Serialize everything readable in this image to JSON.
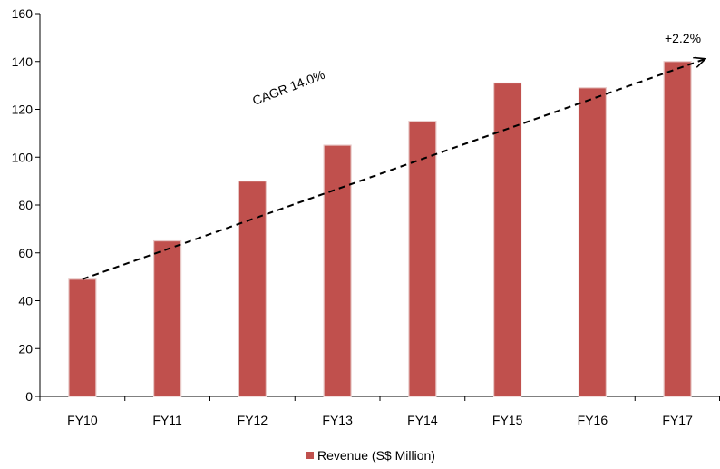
{
  "chart_data": {
    "type": "bar",
    "categories": [
      "FY10",
      "FY11",
      "FY12",
      "FY13",
      "FY14",
      "FY15",
      "FY16",
      "FY17"
    ],
    "series": [
      {
        "name": "Revenue (S$ Million)",
        "values": [
          49,
          65,
          90,
          105,
          115,
          131,
          129,
          140
        ],
        "color": "#C0504D"
      }
    ],
    "ylim": [
      0,
      160
    ],
    "yticks": [
      0,
      20,
      40,
      60,
      80,
      100,
      120,
      140,
      160
    ],
    "grid": false,
    "legend_position": "bottom",
    "annotations": [
      {
        "text": "CAGR 14.0%",
        "kind": "trend-label"
      },
      {
        "text": "+2.2%",
        "kind": "end-label"
      }
    ],
    "trend_line": {
      "from": [
        "FY10",
        49
      ],
      "to": [
        "FY17",
        141
      ],
      "style": "dashed-arrow"
    }
  }
}
